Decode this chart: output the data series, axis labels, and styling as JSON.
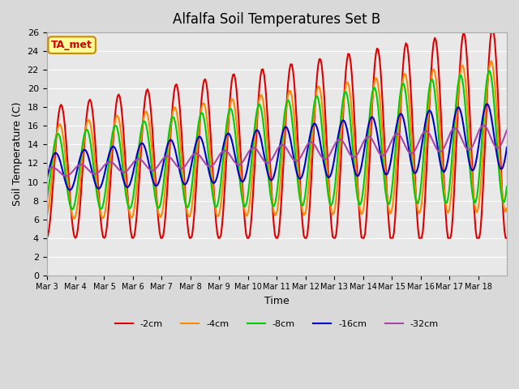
{
  "title": "Alfalfa Soil Temperatures Set B",
  "xlabel": "Time",
  "ylabel": "Soil Temperature (C)",
  "ylim": [
    0,
    26
  ],
  "yticks": [
    0,
    2,
    4,
    6,
    8,
    10,
    12,
    14,
    16,
    18,
    20,
    22,
    24,
    26
  ],
  "series": [
    {
      "label": "-2cm",
      "color": "#dd0000",
      "linewidth": 1.5
    },
    {
      "label": "-4cm",
      "color": "#ff8800",
      "linewidth": 1.5
    },
    {
      "label": "-8cm",
      "color": "#00cc00",
      "linewidth": 1.5
    },
    {
      "label": "-16cm",
      "color": "#0000cc",
      "linewidth": 1.5
    },
    {
      "label": "-32cm",
      "color": "#aa44aa",
      "linewidth": 1.5
    }
  ],
  "xtick_labels": [
    "Mar 3",
    "Mar 4",
    "Mar 5",
    "Mar 6",
    "Mar 7",
    "Mar 8",
    "Mar 9",
    "Mar 10",
    "Mar 11",
    "Mar 12",
    "Mar 13",
    "Mar 14",
    "Mar 15",
    "Mar 16",
    "Mar 17",
    "Mar 18"
  ],
  "annotation_text": "TA_met",
  "annotation_bg": "#ffff99",
  "annotation_border": "#cc8800"
}
